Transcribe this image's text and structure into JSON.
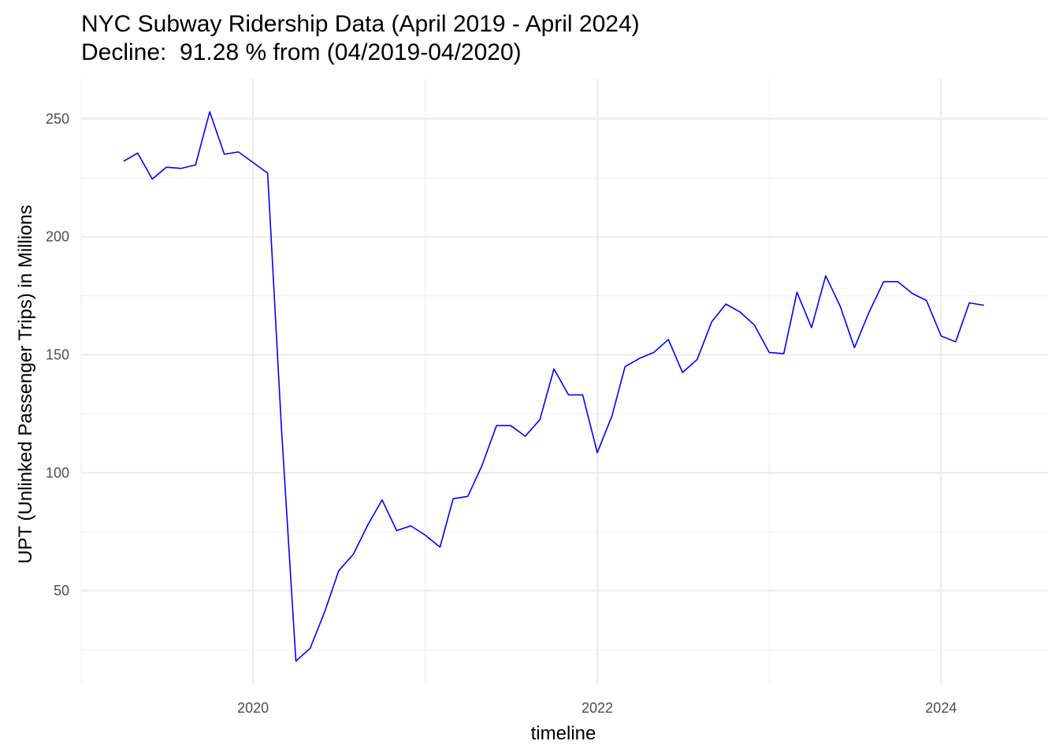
{
  "chart_data": {
    "type": "line",
    "title": "NYC Subway Ridership Data (April 2019 - April 2024)",
    "subtitle": "Decline:  91.28 % from (04/2019-04/2020)",
    "xlabel": "timeline",
    "ylabel": "UPT (Unlinked Passenger Trips) in Millions",
    "xlim": [
      "2019-01-01",
      "2024-08-15"
    ],
    "ylim": [
      10,
      267
    ],
    "x_ticks": [
      {
        "date": "2020-01-01",
        "label": "2020"
      },
      {
        "date": "2022-01-01",
        "label": "2022"
      },
      {
        "date": "2024-01-01",
        "label": "2024"
      }
    ],
    "y_ticks": [
      50,
      100,
      150,
      200,
      250
    ],
    "grid": true,
    "series": [
      {
        "color": "#0000ff",
        "x": [
          "2019-04-01",
          "2019-05-01",
          "2019-06-01",
          "2019-07-01",
          "2019-08-01",
          "2019-09-01",
          "2019-10-01",
          "2019-11-01",
          "2019-12-01",
          "2020-01-01",
          "2020-02-01",
          "2020-03-01",
          "2020-04-01",
          "2020-05-01",
          "2020-06-01",
          "2020-07-01",
          "2020-08-01",
          "2020-09-01",
          "2020-10-01",
          "2020-11-01",
          "2020-12-01",
          "2021-01-01",
          "2021-02-01",
          "2021-03-01",
          "2021-04-01",
          "2021-05-01",
          "2021-06-01",
          "2021-07-01",
          "2021-08-01",
          "2021-09-01",
          "2021-10-01",
          "2021-11-01",
          "2021-12-01",
          "2022-01-01",
          "2022-02-01",
          "2022-03-01",
          "2022-04-01",
          "2022-05-01",
          "2022-06-01",
          "2022-07-01",
          "2022-08-01",
          "2022-09-01",
          "2022-10-01",
          "2022-11-01",
          "2022-12-01",
          "2023-01-01",
          "2023-02-01",
          "2023-03-01",
          "2023-04-01",
          "2023-05-01",
          "2023-06-01",
          "2023-07-01",
          "2023-08-01",
          "2023-09-01",
          "2023-10-01",
          "2023-11-01",
          "2023-12-01",
          "2024-01-01",
          "2024-02-01",
          "2024-03-01",
          "2024-04-01"
        ],
        "values": [
          232.0,
          235.5,
          224.5,
          229.5,
          229.0,
          230.5,
          253.0,
          235.0,
          236.0,
          231.5,
          227.0,
          120.0,
          20.2,
          25.5,
          41.0,
          58.5,
          65.5,
          78.0,
          88.5,
          75.5,
          77.5,
          73.5,
          68.5,
          89.0,
          90.0,
          103.0,
          120.0,
          120.0,
          115.5,
          122.5,
          144.0,
          133.0,
          133.0,
          108.5,
          124.0,
          145.0,
          148.5,
          151.0,
          156.5,
          142.5,
          148.0,
          164.0,
          171.5,
          168.0,
          162.5,
          151.0,
          150.5,
          176.5,
          161.5,
          183.5,
          170.5,
          153.0,
          168.0,
          181.0,
          181.0,
          176.0,
          173.0,
          158.0,
          155.5,
          172.0,
          171.0
        ]
      }
    ]
  }
}
